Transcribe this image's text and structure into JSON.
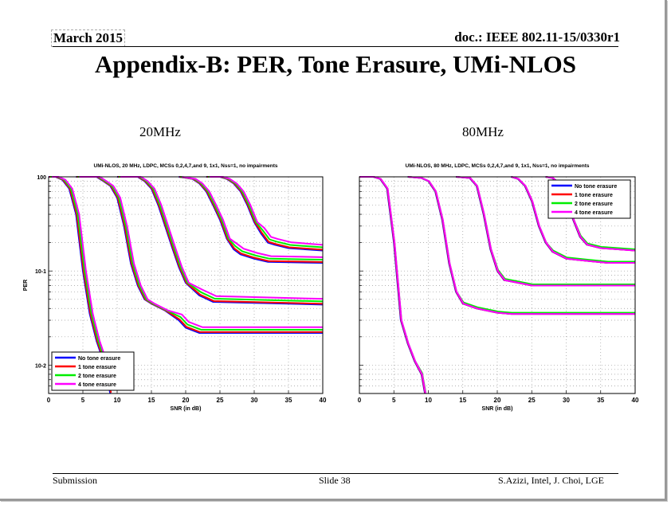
{
  "header": {
    "date": "March 2015",
    "doc": "doc.: IEEE 802.11-15/0330r1"
  },
  "title": "Appendix-B: PER, Tone Erasure, UMi-NLOS",
  "subtitles": {
    "left": "20MHz",
    "right": "80MHz"
  },
  "footer": {
    "left": "Submission",
    "center": "Slide 38",
    "right": "S.Azizi, Intel, J. Choi, LGE"
  },
  "chart_data": [
    {
      "type": "line",
      "title": "UMi-NLOS, 20 MHz, LDPC, MCSs 0,2,4,7,and 9, 1x1, N_ss=1, no impairments",
      "xlabel": "SNR (in dB)",
      "ylabel": "PER",
      "xlim": [
        0,
        40
      ],
      "ylim": [
        0.005,
        1
      ],
      "yscale": "log",
      "grid": true,
      "legend": "bottom-left",
      "xticks": [
        "0",
        "5",
        "10",
        "15",
        "20",
        "25",
        "30",
        "35",
        "40"
      ],
      "yticks": [
        "10^0",
        "10^-1",
        "10^-2"
      ],
      "series": [
        {
          "name": "No tone erasure",
          "color": "#0000ff",
          "snr_offset_db": 0,
          "floor_scale": 1.0
        },
        {
          "name": "1 tone erasure",
          "color": "#ff0000",
          "snr_offset_db": 0.1,
          "floor_scale": 1.02
        },
        {
          "name": "2 tone erasure",
          "color": "#00ee00",
          "snr_offset_db": 0.25,
          "floor_scale": 1.08
        },
        {
          "name": "4 tone erasure",
          "color": "#ff00ff",
          "snr_offset_db": 0.45,
          "floor_scale": 1.15
        }
      ],
      "curves": [
        {
          "mcs": 0,
          "points": [
            [
              0,
              1
            ],
            [
              1,
              1
            ],
            [
              2,
              0.93
            ],
            [
              3,
              0.75
            ],
            [
              4,
              0.4
            ],
            [
              5,
              0.1
            ],
            [
              6,
              0.035
            ],
            [
              7,
              0.018
            ],
            [
              8,
              0.011
            ],
            [
              9,
              0.005
            ]
          ]
        },
        {
          "mcs": 2,
          "points": [
            [
              4,
              1
            ],
            [
              7,
              1
            ],
            [
              8,
              0.9
            ],
            [
              9,
              0.8
            ],
            [
              10,
              0.6
            ],
            [
              11,
              0.3
            ],
            [
              12,
              0.12
            ],
            [
              13,
              0.07
            ],
            [
              14,
              0.05
            ],
            [
              15,
              0.045
            ],
            [
              17,
              0.038
            ],
            [
              19,
              0.03
            ],
            [
              20,
              0.025
            ],
            [
              22,
              0.022
            ],
            [
              40,
              0.022
            ]
          ]
        },
        {
          "mcs": 4,
          "points": [
            [
              10,
              1
            ],
            [
              13,
              1
            ],
            [
              14,
              0.9
            ],
            [
              15,
              0.75
            ],
            [
              16,
              0.5
            ],
            [
              17,
              0.3
            ],
            [
              18,
              0.18
            ],
            [
              19,
              0.11
            ],
            [
              20,
              0.075
            ],
            [
              22,
              0.055
            ],
            [
              24,
              0.047
            ],
            [
              40,
              0.044
            ]
          ]
        },
        {
          "mcs": 7,
          "points": [
            [
              19,
              1
            ],
            [
              21,
              0.95
            ],
            [
              22,
              0.85
            ],
            [
              23,
              0.7
            ],
            [
              24,
              0.5
            ],
            [
              25,
              0.35
            ],
            [
              26,
              0.22
            ],
            [
              27,
              0.17
            ],
            [
              28,
              0.15
            ],
            [
              30,
              0.135
            ],
            [
              32,
              0.125
            ],
            [
              40,
              0.122
            ]
          ]
        },
        {
          "mcs": 9,
          "points": [
            [
              23,
              1
            ],
            [
              25,
              1
            ],
            [
              26,
              0.95
            ],
            [
              27,
              0.85
            ],
            [
              28,
              0.7
            ],
            [
              29,
              0.5
            ],
            [
              30,
              0.33
            ],
            [
              31,
              0.25
            ],
            [
              32,
              0.2
            ],
            [
              33,
              0.19
            ],
            [
              35,
              0.175
            ],
            [
              40,
              0.165
            ]
          ]
        }
      ]
    },
    {
      "type": "line",
      "title": "UMi-NLOS, 80 MHz, LDPC, MCSs 0,2,4,7,and 9, 1x1, N_ss=1, no impairments",
      "xlabel": "SNR (in dB)",
      "ylabel": "",
      "xlim": [
        0,
        40
      ],
      "ylim": [
        0.005,
        1
      ],
      "yscale": "log",
      "grid": true,
      "legend": "top-right",
      "xticks": [
        "0",
        "5",
        "10",
        "15",
        "20",
        "25",
        "30",
        "35",
        "40"
      ],
      "yticks": [],
      "series": [
        {
          "name": "No tone erasure",
          "color": "#0000ff",
          "snr_offset_db": 0,
          "floor_scale": 1.0
        },
        {
          "name": "1 tone erasure",
          "color": "#ff0000",
          "snr_offset_db": 0.05,
          "floor_scale": 1.0
        },
        {
          "name": "2 tone erasure",
          "color": "#00ee00",
          "snr_offset_db": 0.1,
          "floor_scale": 1.03
        },
        {
          "name": "4 tone erasure",
          "color": "#ff00ff",
          "snr_offset_db": 0.1,
          "floor_scale": 1.0
        }
      ],
      "curves": [
        {
          "mcs": 0,
          "points": [
            [
              0,
              1
            ],
            [
              2,
              1
            ],
            [
              3,
              0.95
            ],
            [
              4,
              0.75
            ],
            [
              5,
              0.2
            ],
            [
              6,
              0.03
            ],
            [
              7,
              0.017
            ],
            [
              8,
              0.011
            ],
            [
              9,
              0.008
            ],
            [
              9.5,
              0.005
            ]
          ]
        },
        {
          "mcs": 2,
          "points": [
            [
              7,
              1
            ],
            [
              9,
              0.97
            ],
            [
              10,
              0.9
            ],
            [
              11,
              0.7
            ],
            [
              12,
              0.35
            ],
            [
              13,
              0.12
            ],
            [
              14,
              0.06
            ],
            [
              15,
              0.045
            ],
            [
              17,
              0.04
            ],
            [
              20,
              0.036
            ],
            [
              22,
              0.035
            ],
            [
              40,
              0.035
            ]
          ]
        },
        {
          "mcs": 4,
          "points": [
            [
              14,
              1
            ],
            [
              16,
              0.97
            ],
            [
              17,
              0.8
            ],
            [
              18,
              0.4
            ],
            [
              19,
              0.17
            ],
            [
              20,
              0.1
            ],
            [
              21,
              0.08
            ],
            [
              23,
              0.075
            ],
            [
              25,
              0.07
            ],
            [
              40,
              0.07
            ]
          ]
        },
        {
          "mcs": 7,
          "points": [
            [
              22,
              1
            ],
            [
              23,
              0.95
            ],
            [
              24,
              0.8
            ],
            [
              25,
              0.55
            ],
            [
              26,
              0.3
            ],
            [
              27,
              0.2
            ],
            [
              28,
              0.16
            ],
            [
              30,
              0.135
            ],
            [
              33,
              0.128
            ],
            [
              36,
              0.122
            ],
            [
              40,
              0.122
            ]
          ]
        },
        {
          "mcs": 9,
          "points": [
            [
              27,
              1
            ],
            [
              28,
              0.97
            ],
            [
              29,
              0.85
            ],
            [
              30,
              0.6
            ],
            [
              31,
              0.35
            ],
            [
              32,
              0.23
            ],
            [
              33,
              0.19
            ],
            [
              35,
              0.175
            ],
            [
              40,
              0.165
            ]
          ]
        }
      ]
    }
  ]
}
